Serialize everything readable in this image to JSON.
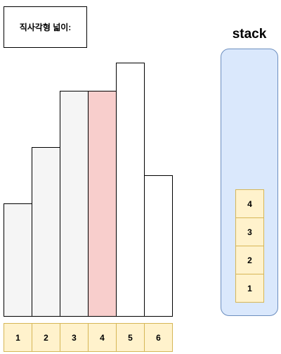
{
  "area_label": "직사각형 넓이:",
  "histogram": {
    "bars": [
      {
        "index": "1",
        "height_units": 4,
        "state": "inactive"
      },
      {
        "index": "2",
        "height_units": 6,
        "state": "inactive"
      },
      {
        "index": "3",
        "height_units": 8,
        "state": "inactive"
      },
      {
        "index": "4",
        "height_units": 8,
        "state": "current"
      },
      {
        "index": "5",
        "height_units": 9,
        "state": "pending"
      },
      {
        "index": "6",
        "height_units": 5,
        "state": "pending"
      }
    ],
    "max_units": 9
  },
  "colors": {
    "inactive_fill": "#f5f5f5",
    "current_fill": "#f8cecc",
    "pending_fill": "#ffffff",
    "cell_fill": "#fff2cc",
    "cell_border": "#d6b656",
    "stack_fill": "#dae8fc",
    "stack_border": "#6c8ebf"
  },
  "stack": {
    "title": "stack",
    "items_top_to_bottom": [
      "4",
      "3",
      "2",
      "1"
    ]
  }
}
